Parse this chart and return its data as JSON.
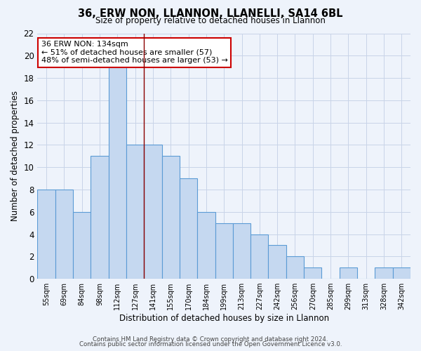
{
  "title": "36, ERW NON, LLANNON, LLANELLI, SA14 6BL",
  "subtitle": "Size of property relative to detached houses in Llannon",
  "xlabel": "Distribution of detached houses by size in Llannon",
  "ylabel": "Number of detached properties",
  "categories": [
    "55sqm",
    "69sqm",
    "84sqm",
    "98sqm",
    "112sqm",
    "127sqm",
    "141sqm",
    "155sqm",
    "170sqm",
    "184sqm",
    "199sqm",
    "213sqm",
    "227sqm",
    "242sqm",
    "256sqm",
    "270sqm",
    "285sqm",
    "299sqm",
    "313sqm",
    "328sqm",
    "342sqm"
  ],
  "values": [
    8,
    8,
    6,
    11,
    19,
    12,
    12,
    11,
    9,
    6,
    5,
    5,
    4,
    3,
    2,
    1,
    0,
    1,
    0,
    1,
    1
  ],
  "bar_color": "#c5d8f0",
  "bar_edge_color": "#5b9bd5",
  "grid_color": "#c8d4e8",
  "background_color": "#eef3fb",
  "ylim": [
    0,
    22
  ],
  "yticks": [
    0,
    2,
    4,
    6,
    8,
    10,
    12,
    14,
    16,
    18,
    20,
    22
  ],
  "vline_x": 5.5,
  "vline_color": "#8b0000",
  "annotation_title": "36 ERW NON: 134sqm",
  "annotation_line1": "← 51% of detached houses are smaller (57)",
  "annotation_line2": "48% of semi-detached houses are larger (53) →",
  "annotation_box_color": "white",
  "annotation_box_edge": "#cc0000",
  "footer1": "Contains HM Land Registry data © Crown copyright and database right 2024.",
  "footer2": "Contains public sector information licensed under the Open Government Licence v3.0."
}
